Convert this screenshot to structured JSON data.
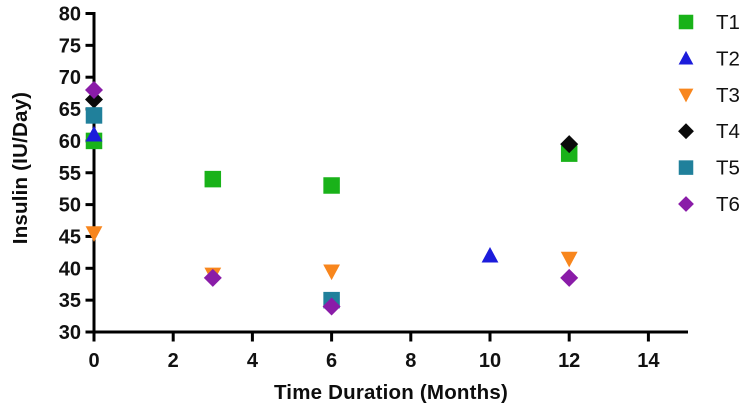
{
  "figure": {
    "background": "#FFFFFF",
    "axis_color": "#000000",
    "text_color": "#111111"
  },
  "chart_data": {
    "type": "scatter",
    "title": "",
    "xlabel": "Time Duration (Months)",
    "ylabel": "Insulin (IU/Day)",
    "xlim": [
      0,
      15
    ],
    "ylim": [
      30,
      80
    ],
    "x_ticks": [
      0,
      2,
      4,
      6,
      8,
      10,
      12,
      14
    ],
    "y_ticks": [
      30,
      35,
      40,
      45,
      50,
      55,
      60,
      65,
      70,
      75,
      80
    ],
    "grid": false,
    "legend_position": "right",
    "series": [
      {
        "name": "T1",
        "marker": "square",
        "color": "#19B219",
        "points": [
          [
            0,
            60
          ],
          [
            3,
            54
          ],
          [
            6,
            53
          ],
          [
            12,
            58
          ]
        ]
      },
      {
        "name": "T2",
        "marker": "triangle-up",
        "color": "#1C1CDB",
        "points": [
          [
            0,
            61
          ],
          [
            10,
            42
          ]
        ]
      },
      {
        "name": "T3",
        "marker": "triangle-down",
        "color": "#F8861D",
        "points": [
          [
            0,
            45.5
          ],
          [
            3,
            39
          ],
          [
            6,
            39.5
          ],
          [
            12,
            41.5
          ]
        ]
      },
      {
        "name": "T4",
        "marker": "diamond",
        "color": "#0A0A0A",
        "points": [
          [
            0,
            66.5
          ],
          [
            12,
            59.5
          ]
        ]
      },
      {
        "name": "T5",
        "marker": "square",
        "color": "#20809B",
        "points": [
          [
            0,
            64
          ],
          [
            6,
            35
          ]
        ]
      },
      {
        "name": "T6",
        "marker": "diamond",
        "color": "#8A1CA8",
        "points": [
          [
            0,
            68
          ],
          [
            3,
            38.5
          ],
          [
            6,
            34
          ],
          [
            12,
            38.5
          ]
        ]
      }
    ]
  }
}
